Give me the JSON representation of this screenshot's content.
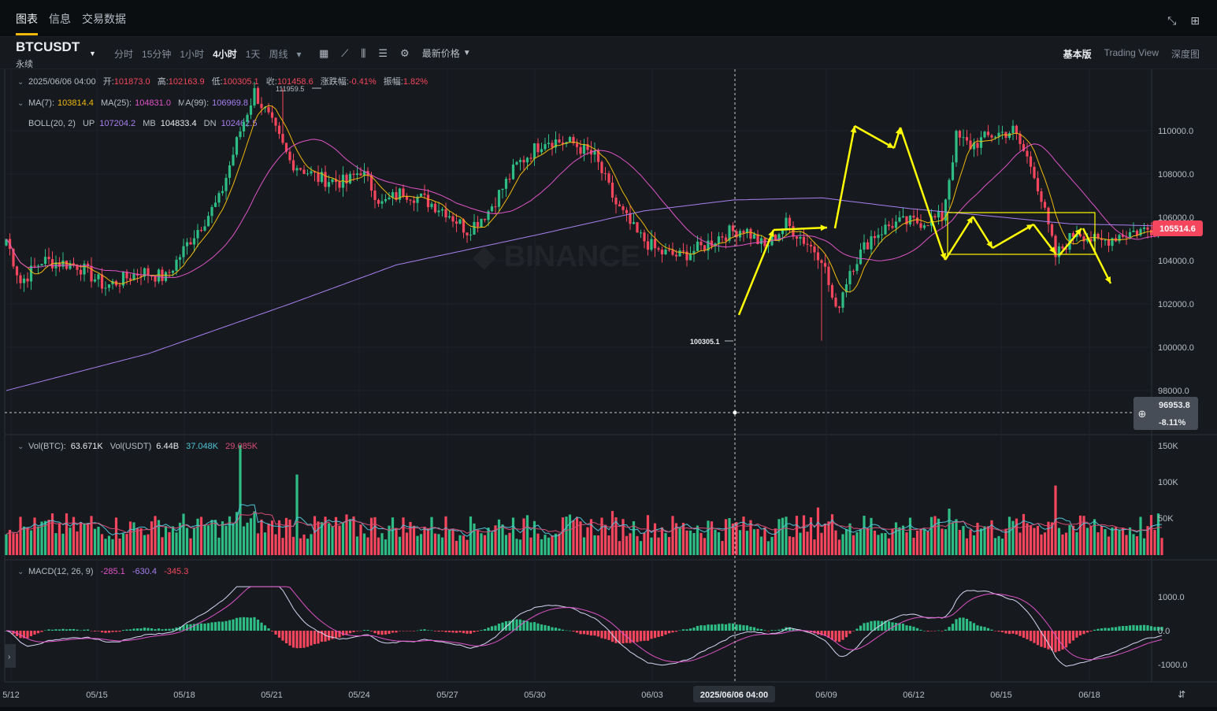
{
  "tabs": [
    "图表",
    "信息",
    "交易数据"
  ],
  "toolbar": {
    "symbol": "BTCUSDT",
    "symbol_sub": "永续",
    "intervals": [
      "分时",
      "15分钟",
      "1小时",
      "4小时",
      "1天",
      "周线"
    ],
    "selected_interval": "4小时",
    "price_type": "最新价格",
    "modes": [
      "基本版",
      "Trading View",
      "深度图"
    ],
    "selected_mode": "基本版"
  },
  "legend": {
    "ohlc": {
      "date": "2025/06/06 04:00",
      "open_label": "开:",
      "open": "101873.0",
      "high_label": "高:",
      "high": "102163.9",
      "low_label": "低:",
      "low": "100305.1",
      "close_label": "收:",
      "close": "101458.6",
      "chg_label": "涨跌幅:",
      "chg": "-0.41%",
      "amp_label": "振幅:",
      "amp": "1.82%"
    },
    "ma": {
      "ma7_label": "MA(7):",
      "ma7": "103814.4",
      "ma25_label": "MA(25):",
      "ma25": "104831.0",
      "ma99_label": "MA(99):",
      "ma99": "106969.8"
    },
    "boll": {
      "label": "BOLL(20, 2)",
      "up_label": "UP",
      "up": "107204.2",
      "mb_label": "MB",
      "mb": "104833.4",
      "dn_label": "DN",
      "dn": "102462.5"
    },
    "vol": {
      "btc_label": "Vol(BTC):",
      "btc": "63.671K",
      "usdt_label": "Vol(USDT)",
      "usdt": "6.44B",
      "v1": "37.048K",
      "v2": "29.085K"
    },
    "macd": {
      "label": "MACD(12, 26, 9)",
      "v1": "-285.1",
      "v2": "-630.4",
      "v3": "-345.3"
    }
  },
  "crosshair": {
    "date": "2025/06/06 04:00",
    "price": "96953.8",
    "pct": "-8.11%"
  },
  "current_price": "105514.6",
  "annotations": {
    "high": "111959.5",
    "low": "100305.1"
  },
  "colors": {
    "up": "#2ebd85",
    "down": "#f6465d",
    "ma7": "#f0b90b",
    "ma25": "#e052c8",
    "ma99": "#a87ef0",
    "arrow": "#ffff00",
    "vol_ma1": "#4fc3d7",
    "vol_ma2": "#d84b74",
    "macd_dif": "#d6d6f5",
    "macd_dea": "#e052c8"
  },
  "chart_data": {
    "type": "candlestick",
    "title": "BTCUSDT 4小时",
    "x_ticks": [
      "5/12",
      "05/15",
      "05/18",
      "05/21",
      "05/24",
      "05/27",
      "05/30",
      "06/03",
      "06/09",
      "06/12",
      "06/15",
      "06/18"
    ],
    "y_ticks": [
      98000,
      100000,
      102000,
      104000,
      106000,
      108000,
      110000
    ],
    "ylim": [
      95500,
      112600
    ],
    "vol_ticks": [
      "150K",
      "100K",
      "50K"
    ],
    "macd_ticks": [
      "1000.0",
      "0.0",
      "-1000.0"
    ],
    "close_keypoints": [
      [
        0,
        105000
      ],
      [
        4,
        103000
      ],
      [
        10,
        104000
      ],
      [
        20,
        103800
      ],
      [
        28,
        102800
      ],
      [
        38,
        103500
      ],
      [
        45,
        103200
      ],
      [
        52,
        105000
      ],
      [
        60,
        106800
      ],
      [
        66,
        110000
      ],
      [
        70,
        111800
      ],
      [
        74,
        110600
      ],
      [
        80,
        108600
      ],
      [
        88,
        107800
      ],
      [
        96,
        107600
      ],
      [
        100,
        108200
      ],
      [
        106,
        106600
      ],
      [
        112,
        107200
      ],
      [
        118,
        106800
      ],
      [
        124,
        106300
      ],
      [
        130,
        105400
      ],
      [
        136,
        106300
      ],
      [
        144,
        108400
      ],
      [
        152,
        109600
      ],
      [
        160,
        109400
      ],
      [
        166,
        108800
      ],
      [
        172,
        106600
      ],
      [
        178,
        105200
      ],
      [
        184,
        104400
      ],
      [
        190,
        104200
      ],
      [
        196,
        104600
      ],
      [
        202,
        105200
      ],
      [
        208,
        105500
      ],
      [
        214,
        104600
      ],
      [
        220,
        105700
      ],
      [
        226,
        104800
      ],
      [
        230,
        104200
      ],
      [
        234,
        101600
      ],
      [
        238,
        103600
      ],
      [
        244,
        105100
      ],
      [
        250,
        105700
      ],
      [
        258,
        105800
      ],
      [
        264,
        106000
      ],
      [
        268,
        109700
      ],
      [
        272,
        109300
      ],
      [
        278,
        109800
      ],
      [
        284,
        110000
      ],
      [
        290,
        108100
      ],
      [
        296,
        104200
      ],
      [
        302,
        105400
      ],
      [
        308,
        104800
      ],
      [
        314,
        105200
      ],
      [
        320,
        105400
      ],
      [
        326,
        105500
      ]
    ],
    "ma99_keypoints": [
      [
        0,
        98000
      ],
      [
        40,
        99700
      ],
      [
        80,
        102000
      ],
      [
        110,
        103800
      ],
      [
        150,
        105200
      ],
      [
        180,
        106300
      ],
      [
        205,
        106800
      ],
      [
        230,
        106900
      ],
      [
        255,
        106400
      ],
      [
        275,
        106100
      ],
      [
        300,
        105700
      ],
      [
        326,
        105600
      ]
    ]
  }
}
